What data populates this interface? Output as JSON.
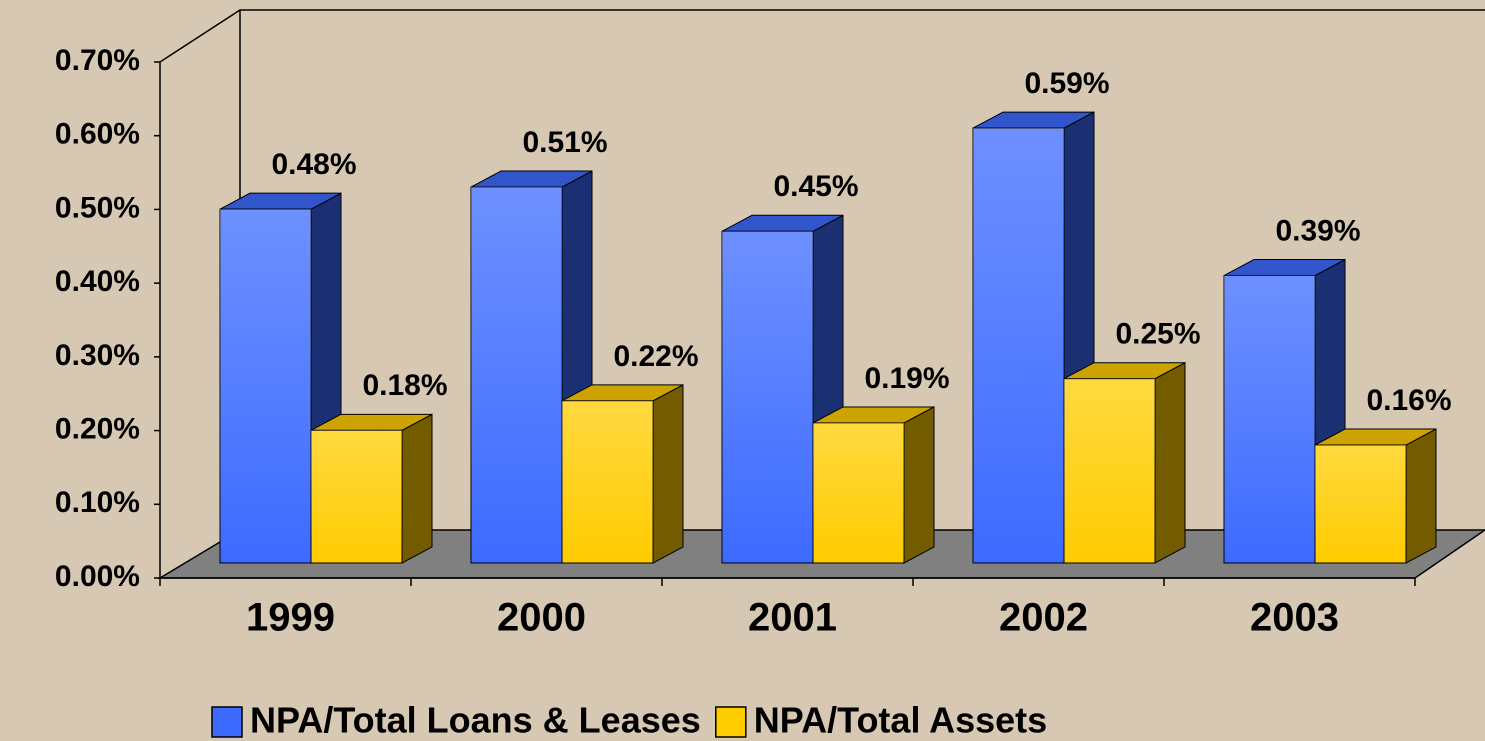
{
  "chart_data": {
    "type": "bar3d",
    "categories": [
      "1999",
      "2000",
      "2001",
      "2002",
      "2003"
    ],
    "series": [
      {
        "name": "NPA/Total Loans & Leases",
        "color": "#3d6bff",
        "values": [
          0.48,
          0.51,
          0.45,
          0.59,
          0.39
        ],
        "value_labels": [
          "0.48%",
          "0.51%",
          "0.45%",
          "0.59%",
          "0.39%"
        ]
      },
      {
        "name": "NPA/Total Assets",
        "color": "#ffcc00",
        "values": [
          0.18,
          0.22,
          0.19,
          0.25,
          0.16
        ],
        "value_labels": [
          "0.18%",
          "0.22%",
          "0.19%",
          "0.25%",
          "0.16%"
        ]
      }
    ],
    "ylim": [
      0,
      0.7
    ],
    "yticks": [
      {
        "value": 0,
        "label": "0.00%"
      },
      {
        "value": 0.1,
        "label": "0.10%"
      },
      {
        "value": 0.2,
        "label": "0.20%"
      },
      {
        "value": 0.3,
        "label": "0.30%"
      },
      {
        "value": 0.4,
        "label": "0.40%"
      },
      {
        "value": 0.5,
        "label": "0.50%"
      },
      {
        "value": 0.6,
        "label": "0.60%"
      },
      {
        "value": 0.7,
        "label": "0.70%"
      }
    ],
    "legend": "bottom"
  }
}
